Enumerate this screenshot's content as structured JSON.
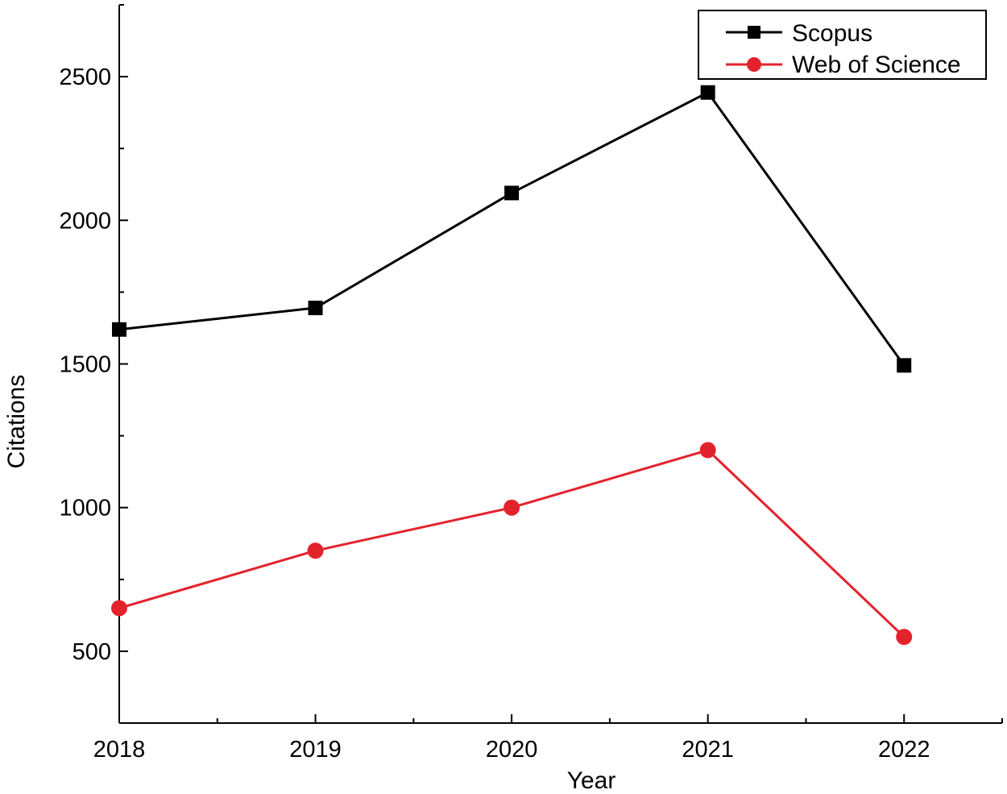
{
  "chart_data": {
    "type": "line",
    "title": "",
    "xlabel": "Year",
    "ylabel": "Citations",
    "categories": [
      "2018",
      "2019",
      "2020",
      "2021",
      "2022"
    ],
    "x_ticks": [
      "2018",
      "2019",
      "2020",
      "2021",
      "2022"
    ],
    "y_ticks": [
      500,
      1000,
      1500,
      2000,
      2500
    ],
    "xlim": [
      2018,
      2022.5
    ],
    "ylim": [
      250,
      2750
    ],
    "grid": false,
    "legend_position": "top-right",
    "series": [
      {
        "name": "Scopus",
        "color": "#000000",
        "marker": "square",
        "values": [
          1620,
          1695,
          2095,
          2445,
          1495
        ]
      },
      {
        "name": "Web of Science",
        "color": "#e3232c",
        "marker": "circle",
        "values": [
          650,
          850,
          1000,
          1200,
          550
        ]
      }
    ]
  }
}
